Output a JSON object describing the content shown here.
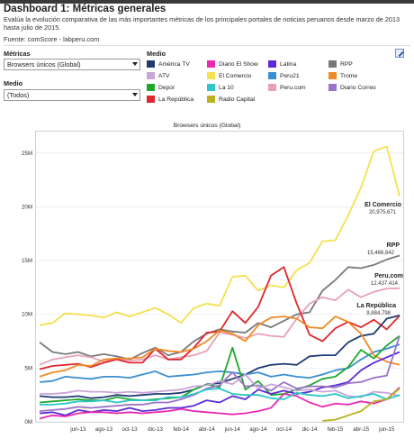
{
  "header": {
    "title": "Dashboard 1: Métricas generales",
    "subtitle": "Evalúa la evolución comparativa de las más importantes métricas de los principales portales de noticias peruanos desde marzo de 2013 hasta julio de 2015.",
    "source": "Fuente: comScore - labperu.com"
  },
  "filters": {
    "metricas_label": "Métricas",
    "metricas_value": "Browsers únicos (Global)",
    "medio_label": "Medio",
    "medio_value": "(Todos)"
  },
  "legend": {
    "title": "Medio",
    "items": [
      {
        "label": "América TV",
        "color": "#1f3b73"
      },
      {
        "label": "Diario El Show",
        "color": "#e829b3"
      },
      {
        "label": "Latina",
        "color": "#5a2bd6"
      },
      {
        "label": "RPP",
        "color": "#7a7a7a"
      },
      {
        "label": "ATV",
        "color": "#c9a4d8"
      },
      {
        "label": "El Comercio",
        "color": "#f4e04d"
      },
      {
        "label": "Peru21",
        "color": "#3a8fd1"
      },
      {
        "label": "Trome",
        "color": "#f08a24"
      },
      {
        "label": "Depor",
        "color": "#1fa82e"
      },
      {
        "label": "La 10",
        "color": "#2ec7c9"
      },
      {
        "label": "Peru.com",
        "color": "#e8a0b8"
      },
      {
        "label": "Diario Correo",
        "color": "#9c72c8"
      },
      {
        "label": "La República",
        "color": "#e0262d"
      },
      {
        "label": "Radio Capital",
        "color": "#b9b21c"
      }
    ]
  },
  "chart_data": {
    "type": "line",
    "title": "Browsers únicos (Global)",
    "ylim": [
      0,
      27000000
    ],
    "yticks": [
      "0M",
      "5M",
      "10M",
      "15M",
      "20M",
      "25M"
    ],
    "ytick_values": [
      0,
      5000000,
      10000000,
      15000000,
      20000000,
      25000000
    ],
    "xtick_labels": [
      "jun-13",
      "ago-13",
      "oct-13",
      "dic-13",
      "feb-14",
      "abr-14",
      "jun-14",
      "ago-14",
      "oct-14",
      "dic-14",
      "feb-15",
      "abr-15",
      "jun-15"
    ],
    "xtick_index": [
      3,
      5,
      7,
      9,
      11,
      13,
      15,
      17,
      19,
      21,
      23,
      25,
      27
    ],
    "x": [
      "mar-13",
      "abr-13",
      "may-13",
      "jun-13",
      "jul-13",
      "ago-13",
      "sep-13",
      "oct-13",
      "nov-13",
      "dic-13",
      "ene-14",
      "feb-14",
      "mar-14",
      "abr-14",
      "may-14",
      "jun-14",
      "jul-14",
      "ago-14",
      "sep-14",
      "oct-14",
      "nov-14",
      "dic-14",
      "ene-15",
      "feb-15",
      "mar-15",
      "abr-15",
      "may-15",
      "jun-15",
      "jul-15"
    ],
    "series": [
      {
        "name": "El Comercio",
        "color": "#f4e04d",
        "values": [
          9.0,
          9.2,
          10.1,
          10.0,
          9.9,
          9.7,
          10.2,
          9.8,
          10.2,
          10.6,
          10.0,
          9.2,
          10.6,
          11.0,
          10.8,
          13.5,
          13.6,
          12.2,
          12.7,
          12.5,
          14.1,
          14.8,
          16.8,
          16.9,
          19.2,
          21.8,
          25.2,
          25.6,
          20.98
        ]
      },
      {
        "name": "RPP",
        "color": "#7a7a7a",
        "values": [
          7.4,
          6.5,
          6.3,
          6.5,
          6.1,
          6.3,
          6.1,
          5.8,
          6.4,
          6.9,
          6.2,
          6.5,
          7.5,
          8.2,
          8.6,
          8.4,
          8.3,
          9.2,
          8.8,
          9.4,
          10.0,
          10.2,
          12.2,
          13.2,
          14.4,
          14.3,
          14.6,
          15.1,
          15.47
        ]
      },
      {
        "name": "Peru.com",
        "color": "#e8a0b8",
        "values": [
          5.3,
          5.8,
          6.0,
          6.2,
          6.0,
          5.6,
          5.9,
          5.7,
          5.8,
          6.2,
          5.8,
          6.0,
          6.2,
          6.6,
          8.3,
          8.1,
          7.8,
          8.2,
          8.0,
          7.9,
          9.6,
          11.0,
          11.6,
          11.3,
          12.3,
          11.6,
          12.1,
          12.4,
          12.43
        ]
      },
      {
        "name": "La República",
        "color": "#e0262d",
        "values": [
          4.9,
          5.2,
          5.3,
          5.4,
          5.1,
          5.5,
          5.8,
          5.5,
          5.5,
          6.8,
          5.8,
          5.8,
          6.9,
          8.3,
          8.4,
          10.3,
          9.2,
          10.7,
          13.6,
          14.4,
          11.0,
          8.1,
          7.5,
          8.7,
          9.3,
          8.8,
          9.5,
          8.6,
          9.88
        ]
      },
      {
        "name": "América TV",
        "color": "#1f3b73",
        "values": [
          2.4,
          2.3,
          2.3,
          2.4,
          2.2,
          2.3,
          2.5,
          2.4,
          2.5,
          2.6,
          2.6,
          2.7,
          3.0,
          3.5,
          3.6,
          4.0,
          4.4,
          5.0,
          5.3,
          5.4,
          5.3,
          6.1,
          6.2,
          6.2,
          7.4,
          8.0,
          8.2,
          9.6,
          9.9
        ]
      },
      {
        "name": "Peru21",
        "color": "#3a8fd1",
        "values": [
          3.7,
          3.8,
          4.2,
          4.1,
          4.0,
          4.2,
          4.2,
          4.1,
          4.4,
          4.7,
          4.2,
          4.3,
          4.4,
          4.6,
          4.7,
          4.6,
          4.4,
          4.6,
          4.2,
          4.4,
          4.2,
          4.1,
          4.4,
          4.8,
          5.0,
          5.8,
          6.5,
          6.8,
          7.2
        ]
      },
      {
        "name": "Trome",
        "color": "#f08a24",
        "values": [
          4.2,
          4.6,
          4.8,
          5.3,
          5.2,
          5.8,
          5.9,
          5.9,
          6.0,
          6.8,
          6.6,
          6.5,
          6.8,
          7.5,
          8.5,
          8.2,
          7.5,
          9.0,
          9.7,
          9.8,
          9.6,
          8.8,
          8.7,
          9.8,
          9.3,
          8.2,
          6.2,
          5.6,
          5.3
        ]
      },
      {
        "name": "Depor",
        "color": "#1fa82e",
        "values": [
          1.8,
          1.9,
          2.0,
          2.1,
          2.0,
          2.0,
          2.3,
          2.1,
          2.0,
          2.1,
          2.2,
          2.3,
          3.0,
          3.5,
          3.2,
          6.9,
          3.0,
          3.8,
          2.5,
          2.6,
          3.0,
          3.4,
          4.0,
          4.2,
          5.1,
          6.7,
          5.9,
          7.1,
          8.0
        ]
      },
      {
        "name": "Latina",
        "color": "#5a2bd6",
        "values": [
          0.8,
          0.9,
          0.6,
          1.1,
          0.9,
          1.1,
          1.0,
          1.3,
          1.0,
          1.1,
          1.3,
          1.3,
          1.5,
          2.0,
          1.8,
          2.4,
          2.1,
          3.0,
          2.6,
          2.9,
          2.6,
          2.8,
          3.2,
          3.4,
          3.7,
          4.8,
          5.5,
          6.0,
          6.5
        ]
      },
      {
        "name": "Diario Correo",
        "color": "#9c72c8",
        "values": [
          1.0,
          1.1,
          1.2,
          1.4,
          1.3,
          1.4,
          1.5,
          1.6,
          1.6,
          1.8,
          1.8,
          2.1,
          2.5,
          3.1,
          3.4,
          4.6,
          3.3,
          3.4,
          2.9,
          3.7,
          3.1,
          3.3,
          3.3,
          3.2,
          3.6,
          3.7,
          4.1,
          4.3,
          8.0
        ]
      },
      {
        "name": "ATV",
        "color": "#c9a4d8",
        "values": [
          2.6,
          2.6,
          2.7,
          2.9,
          2.8,
          2.8,
          2.7,
          2.8,
          2.7,
          2.8,
          2.9,
          3.0,
          3.3,
          3.4,
          3.8,
          3.5,
          4.4,
          3.1,
          3.5,
          3.2,
          2.9,
          3.0,
          2.8,
          2.9,
          2.4,
          2.3,
          2.8,
          2.7,
          2.4
        ]
      },
      {
        "name": "Diario El Show",
        "color": "#e829b3",
        "values": [
          0.3,
          0.6,
          0.5,
          0.8,
          0.9,
          0.9,
          0.8,
          0.9,
          0.8,
          0.9,
          1.0,
          1.2,
          1.0,
          0.9,
          0.8,
          0.7,
          0.8,
          1.0,
          1.3,
          2.6,
          2.4,
          1.8,
          1.4,
          1.7,
          1.6,
          1.9,
          1.7,
          2.1,
          3.2
        ]
      },
      {
        "name": "La 10",
        "color": "#2ec7c9",
        "values": [
          1.6,
          1.6,
          1.7,
          1.9,
          1.9,
          2.0,
          1.8,
          2.0,
          2.0,
          2.0,
          2.3,
          2.3,
          2.6,
          3.0,
          3.1,
          2.6,
          2.5,
          2.5,
          2.2,
          2.1,
          2.7,
          2.5,
          2.4,
          2.6,
          2.2,
          2.4,
          2.6,
          2.1,
          2.5
        ]
      },
      {
        "name": "Radio Capital",
        "color": "#b9b21c",
        "values": [
          null,
          null,
          null,
          null,
          null,
          null,
          null,
          null,
          null,
          null,
          null,
          null,
          null,
          null,
          null,
          null,
          null,
          null,
          null,
          null,
          null,
          null,
          0.1,
          0.2,
          0.6,
          1.0,
          1.9,
          2.1,
          3.1
        ]
      }
    ],
    "values_unit": "millones",
    "annotations": [
      {
        "name": "El Comercio",
        "value": "20,975,671"
      },
      {
        "name": "RPP",
        "value": "15,466,642"
      },
      {
        "name": "Peru.com",
        "value": "12,437,414"
      },
      {
        "name": "La República",
        "value": "9,884,798"
      }
    ]
  }
}
